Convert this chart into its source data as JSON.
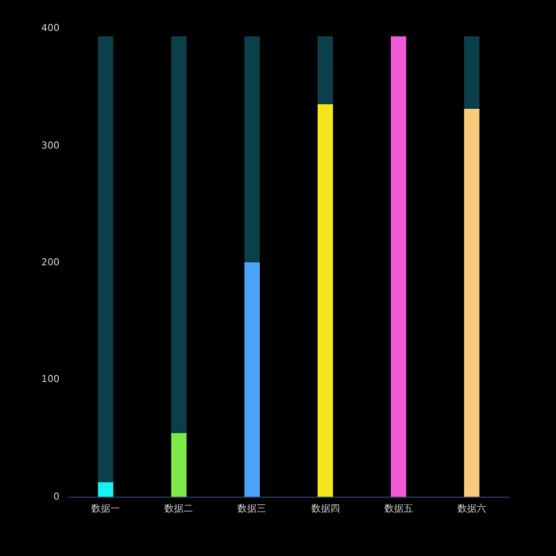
{
  "chart_data": {
    "type": "bar",
    "stacked": true,
    "categories": [
      "数据一",
      "数据二",
      "数据三",
      "数据四",
      "数据五",
      "数据六"
    ],
    "series": [
      {
        "colors": [
          "#19f0f0",
          "#7de84a",
          "#4aa3f5",
          "#f5e31c",
          "#f05ad8",
          "#f7c97a"
        ],
        "values": [
          12,
          54,
          200,
          335,
          393,
          331
        ]
      },
      {
        "color": "#0b3f4a",
        "values": [
          381,
          339,
          193,
          58,
          0,
          62
        ]
      }
    ],
    "ylim": [
      0,
      400
    ],
    "yticks": [
      0,
      100,
      200,
      300,
      400
    ],
    "grid": false,
    "legend": false
  }
}
